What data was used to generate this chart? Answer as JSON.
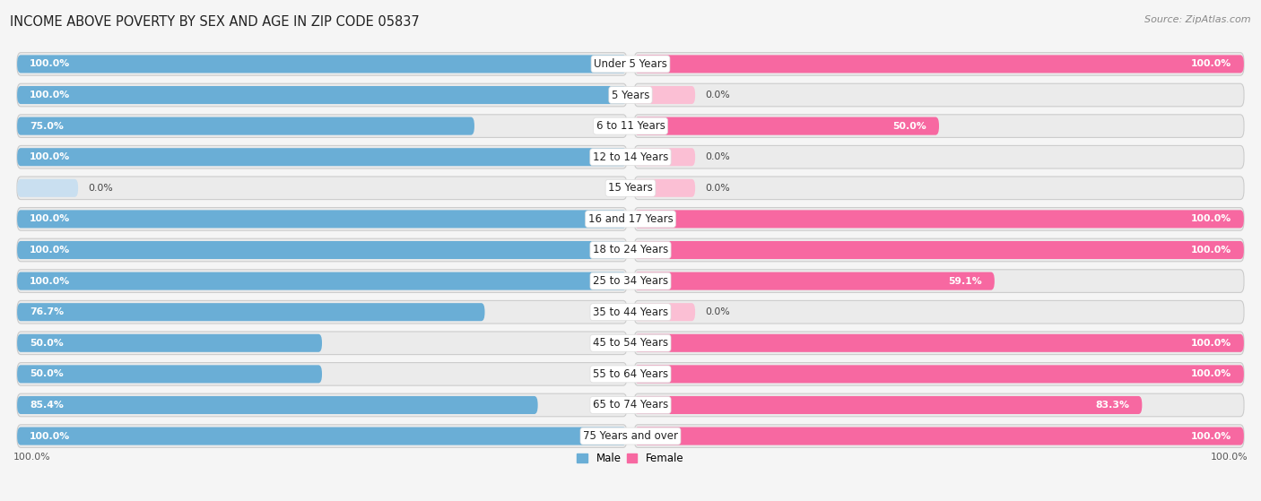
{
  "title": "INCOME ABOVE POVERTY BY SEX AND AGE IN ZIP CODE 05837",
  "source": "Source: ZipAtlas.com",
  "categories": [
    "Under 5 Years",
    "5 Years",
    "6 to 11 Years",
    "12 to 14 Years",
    "15 Years",
    "16 and 17 Years",
    "18 to 24 Years",
    "25 to 34 Years",
    "35 to 44 Years",
    "45 to 54 Years",
    "55 to 64 Years",
    "65 to 74 Years",
    "75 Years and over"
  ],
  "male_values": [
    100.0,
    100.0,
    75.0,
    100.0,
    0.0,
    100.0,
    100.0,
    100.0,
    76.7,
    50.0,
    50.0,
    85.4,
    100.0
  ],
  "female_values": [
    100.0,
    0.0,
    50.0,
    0.0,
    0.0,
    100.0,
    100.0,
    59.1,
    0.0,
    100.0,
    100.0,
    83.3,
    100.0
  ],
  "male_color": "#6aaed6",
  "female_color": "#f768a1",
  "male_color_pale": "#c9dff0",
  "female_color_pale": "#fbbfd4",
  "row_bg_even": "#ffffff",
  "row_bg_odd": "#f0f0f0",
  "container_color": "#e8e8e8",
  "background_color": "#f5f5f5",
  "title_fontsize": 10.5,
  "label_fontsize": 8.5,
  "value_fontsize": 7.8,
  "source_fontsize": 8
}
